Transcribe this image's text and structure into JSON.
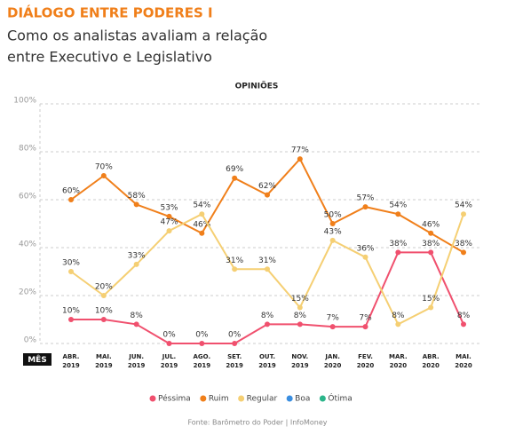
{
  "chart_data": {
    "type": "line",
    "title": "DIÁLOGO ENTRE PODERES I",
    "subtitle": [
      "Como os analistas avaliam a relação",
      "entre Executivo e Legislativo"
    ],
    "chart_title": "OPINIÕES",
    "x_label": "MÊS",
    "source": "Fonte: Barômetro do Poder | InfoMoney",
    "categories": [
      "ABR. 2019",
      "MAI. 2019",
      "JUN. 2019",
      "JUL. 2019",
      "AGO. 2019",
      "SET. 2019",
      "OUT. 2019",
      "NOV. 2019",
      "JAN. 2020",
      "FEV. 2020",
      "MAR. 2020",
      "ABR. 2020",
      "MAI. 2020"
    ],
    "series": [
      {
        "name": "Péssima",
        "color": "#f0506e",
        "values": [
          10,
          10,
          8,
          0,
          0,
          0,
          8,
          8,
          7,
          7,
          38,
          38,
          8
        ],
        "value_labels": [
          "10%",
          "10%",
          "8%",
          "0%",
          "0%",
          "0%",
          "8%",
          "8%",
          "7%",
          "7%",
          "38%",
          "38%",
          "8%"
        ]
      },
      {
        "name": "Ruim",
        "color": "#f07f1a",
        "values": [
          60,
          70,
          58,
          53,
          46,
          69,
          62,
          77,
          50,
          57,
          54,
          46,
          38
        ],
        "value_labels": [
          "60%",
          "70%",
          "58%",
          "53%",
          "46%",
          "69%",
          "62%",
          "77%",
          "50%",
          "57%",
          "54%",
          "46%",
          "38%"
        ]
      },
      {
        "name": "Regular",
        "color": "#f5cf73",
        "values": [
          30,
          20,
          33,
          47,
          54,
          31,
          31,
          15,
          43,
          36,
          8,
          15,
          54
        ],
        "value_labels": [
          "30%",
          "20%",
          "33%",
          "47%",
          "54%",
          "31%",
          "31%",
          "15%",
          "43%",
          "36%",
          "8%",
          "15%",
          "54%"
        ]
      },
      {
        "name": "Boa",
        "color": "#3a8ee0",
        "values": [
          null,
          null,
          null,
          null,
          null,
          null,
          null,
          null,
          null,
          null,
          null,
          null,
          null
        ]
      },
      {
        "name": "Ótima",
        "color": "#2bb58a",
        "values": [
          null,
          null,
          null,
          null,
          null,
          null,
          null,
          null,
          null,
          null,
          null,
          null,
          null
        ]
      }
    ],
    "ylim": [
      0,
      100
    ],
    "yticks": [
      {
        "value": 0,
        "label": "0%"
      },
      {
        "value": 20,
        "label": "20%"
      },
      {
        "value": 40,
        "label": "40%"
      },
      {
        "value": 60,
        "label": "60%"
      },
      {
        "value": 80,
        "label": "80%"
      },
      {
        "value": 100,
        "label": "100%"
      }
    ],
    "grid": true
  }
}
